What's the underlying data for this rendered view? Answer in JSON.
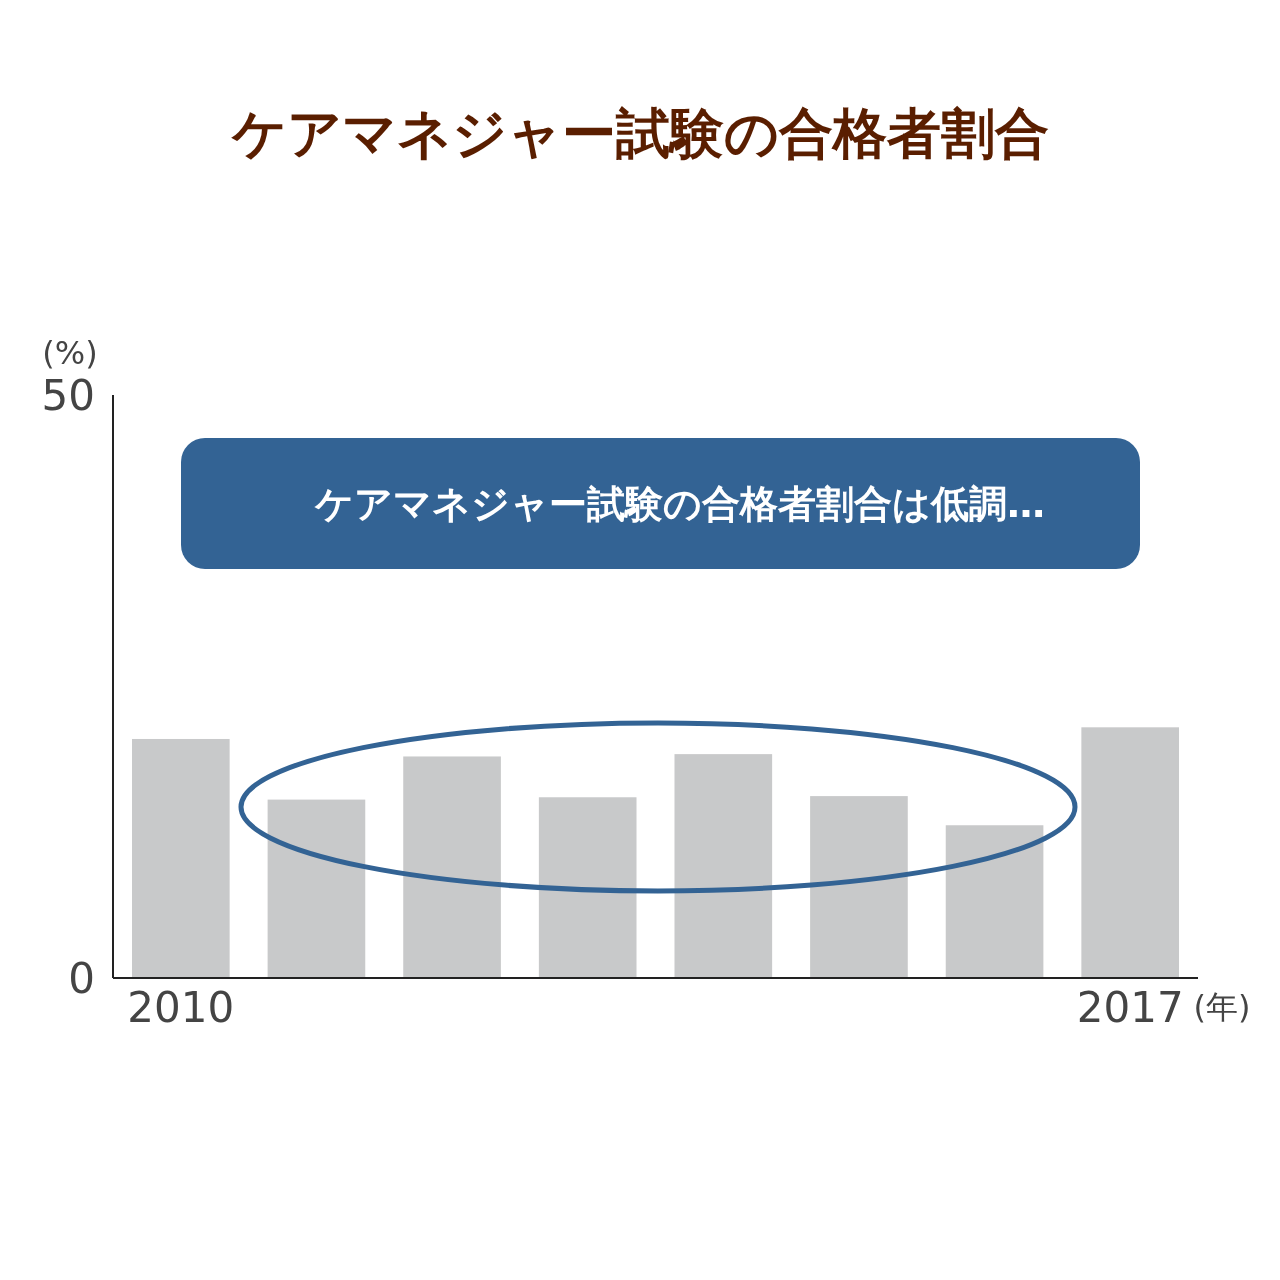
{
  "chart_data": {
    "type": "bar",
    "title": "ケアマネジャー試験の合格者割合",
    "categories": [
      "2010",
      null,
      null,
      null,
      null,
      null,
      null,
      "2017"
    ],
    "values": [
      20.5,
      15.3,
      19.0,
      15.5,
      19.2,
      15.6,
      13.1,
      21.5
    ],
    "color": "#c8c9ca",
    "ylim": [
      0,
      50
    ],
    "yticks": [
      0,
      50
    ],
    "xlabel": "(年)",
    "ylabel": "(%)",
    "annotations": [
      "ケアマネジャー試験の合格者割合は低調…"
    ]
  }
}
